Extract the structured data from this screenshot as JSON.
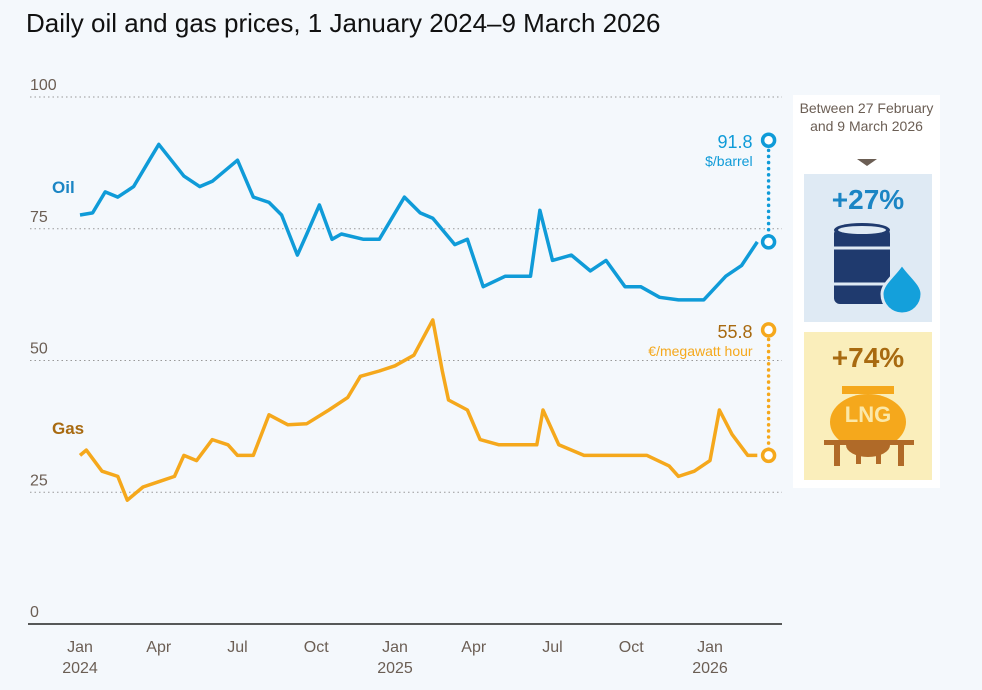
{
  "title": "Daily oil and gas prices, 1 January 2024–9 March 2026",
  "colors": {
    "oil": "#0f9bd8",
    "gas": "#f5a81c",
    "oil_dark": "#1f3a6e",
    "gas_dark": "#a86a10"
  },
  "chart_data": {
    "type": "line",
    "title": "Daily oil and gas prices, 1 January 2024–9 March 2026",
    "ylim": [
      0,
      100
    ],
    "yticks": [
      "0",
      "25",
      "50",
      "75",
      "100"
    ],
    "xticks": [
      {
        "label": "Jan",
        "sub": "2024",
        "t": 0
      },
      {
        "label": "Apr",
        "t": 0.25
      },
      {
        "label": "Jul",
        "t": 0.5
      },
      {
        "label": "Oct",
        "t": 0.75
      },
      {
        "label": "Jan",
        "sub": "2025",
        "t": 1
      },
      {
        "label": "Apr",
        "t": 1.25
      },
      {
        "label": "Jul",
        "t": 1.5
      },
      {
        "label": "Oct",
        "t": 1.75
      },
      {
        "label": "Jan",
        "sub": "2026",
        "t": 2
      }
    ],
    "grid": true,
    "series": [
      {
        "name": "Oil",
        "unit": "$/barrel",
        "end_value": "91.8",
        "points": [
          [
            0,
            77.6
          ],
          [
            0.04,
            78
          ],
          [
            0.08,
            82
          ],
          [
            0.12,
            81
          ],
          [
            0.17,
            83
          ],
          [
            0.22,
            88
          ],
          [
            0.25,
            91
          ],
          [
            0.29,
            88
          ],
          [
            0.33,
            85
          ],
          [
            0.38,
            83
          ],
          [
            0.42,
            84
          ],
          [
            0.5,
            88
          ],
          [
            0.55,
            81
          ],
          [
            0.6,
            80
          ],
          [
            0.64,
            77.6
          ],
          [
            0.69,
            70
          ],
          [
            0.72,
            74
          ],
          [
            0.76,
            79.5
          ],
          [
            0.8,
            73
          ],
          [
            0.83,
            74
          ],
          [
            0.9,
            73
          ],
          [
            0.95,
            73
          ],
          [
            1.03,
            81
          ],
          [
            1.08,
            78
          ],
          [
            1.12,
            77
          ],
          [
            1.19,
            72
          ],
          [
            1.23,
            73
          ],
          [
            1.28,
            64
          ],
          [
            1.35,
            66
          ],
          [
            1.43,
            66
          ],
          [
            1.46,
            78.5
          ],
          [
            1.5,
            69
          ],
          [
            1.56,
            70
          ],
          [
            1.62,
            67
          ],
          [
            1.67,
            69
          ],
          [
            1.73,
            64
          ],
          [
            1.78,
            64
          ],
          [
            1.84,
            62
          ],
          [
            1.9,
            61.5
          ],
          [
            1.98,
            61.5
          ],
          [
            2.05,
            66
          ],
          [
            2.1,
            68
          ],
          [
            2.15,
            72.5
          ],
          [
            2.186,
            91.8
          ]
        ]
      },
      {
        "name": "Gas",
        "unit": "€/megawatt hour",
        "end_value": "55.8",
        "points": [
          [
            0,
            32
          ],
          [
            0.02,
            33
          ],
          [
            0.07,
            29
          ],
          [
            0.12,
            28
          ],
          [
            0.15,
            23.5
          ],
          [
            0.2,
            26
          ],
          [
            0.25,
            27
          ],
          [
            0.3,
            28
          ],
          [
            0.33,
            32
          ],
          [
            0.37,
            31
          ],
          [
            0.42,
            35
          ],
          [
            0.47,
            34
          ],
          [
            0.5,
            32
          ],
          [
            0.55,
            32
          ],
          [
            0.6,
            39.7
          ],
          [
            0.66,
            37.8
          ],
          [
            0.72,
            38
          ],
          [
            0.79,
            40.6
          ],
          [
            0.85,
            43
          ],
          [
            0.89,
            47
          ],
          [
            0.95,
            48
          ],
          [
            1.0,
            49
          ],
          [
            1.06,
            51
          ],
          [
            1.12,
            57.7
          ],
          [
            1.15,
            48
          ],
          [
            1.17,
            42.5
          ],
          [
            1.23,
            40.6
          ],
          [
            1.27,
            35
          ],
          [
            1.33,
            34
          ],
          [
            1.38,
            34
          ],
          [
            1.45,
            34
          ],
          [
            1.47,
            40.6
          ],
          [
            1.52,
            34
          ],
          [
            1.6,
            32
          ],
          [
            1.7,
            32
          ],
          [
            1.8,
            32
          ],
          [
            1.87,
            30
          ],
          [
            1.9,
            28
          ],
          [
            1.95,
            29
          ],
          [
            2.0,
            31
          ],
          [
            2.03,
            40.6
          ],
          [
            2.07,
            36
          ],
          [
            2.12,
            32
          ],
          [
            2.15,
            32
          ],
          [
            2.186,
            55.8
          ]
        ]
      }
    ]
  },
  "labels": {
    "oil": "Oil",
    "gas": "Gas",
    "oil_value": "91.8",
    "oil_unit": "$/barrel",
    "gas_value": "55.8",
    "gas_unit": "€/megawatt hour"
  },
  "panel": {
    "between": "Between 27 February and 9 March 2026",
    "oil_change": "+27%",
    "gas_change": "+74%",
    "lng": "LNG"
  }
}
